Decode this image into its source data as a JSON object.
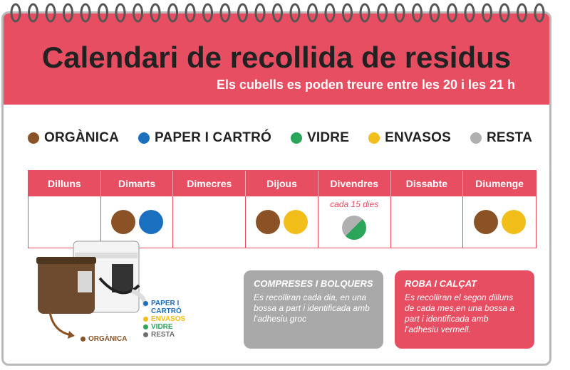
{
  "header": {
    "title": "Calendari de recollida de residus",
    "subtitle": "Els cubells es poden treure entre les 20 i les 21 h"
  },
  "legend": [
    {
      "label": "ORGÀNICA",
      "color": "#8b5226"
    },
    {
      "label": "PAPER I CARTRÓ",
      "color": "#1b6fbf"
    },
    {
      "label": "VIDRE",
      "color": "#2aa55a"
    },
    {
      "label": "ENVASOS",
      "color": "#f2be1a"
    },
    {
      "label": "RESTA",
      "color": "#b0b0b0"
    }
  ],
  "calendar": {
    "days": [
      "Dilluns",
      "Dimarts",
      "Dimecres",
      "Dijous",
      "Divendres",
      "Dissabte",
      "Diumenge"
    ],
    "cells": [
      {
        "bins": []
      },
      {
        "bins": [
          "#8b5226",
          "#1b6fbf"
        ]
      },
      {
        "bins": []
      },
      {
        "bins": [
          "#8b5226",
          "#f2be1a"
        ]
      },
      {
        "note": "cada 15 dies",
        "bins": [
          "#b0b0b0",
          "#2aa55a"
        ],
        "split": true
      },
      {
        "bins": []
      },
      {
        "bins": [
          "#8b5226",
          "#f2be1a"
        ]
      }
    ]
  },
  "illustration": {
    "labels": [
      {
        "text": "PAPER I CARTRÓ",
        "color": "#1b6fbf"
      },
      {
        "text": "ENVASOS",
        "color": "#f2be1a"
      },
      {
        "text": "VIDRE",
        "color": "#2aa55a"
      },
      {
        "text": "RESTA",
        "color": "#6d6d6d"
      }
    ],
    "organic": {
      "text": "ORGÀNICA",
      "color": "#8b5226"
    }
  },
  "notes": [
    {
      "title": "COMPRESES I BOLQUERS",
      "text": "Es recolliran cada dia, en una bossa a part i identificada amb l’adhesiu groc",
      "color": "#a9a9a9"
    },
    {
      "title": "ROBA I CALÇAT",
      "text": "Es recolliran el segon dilluns de cada mes,en una bossa a part i identificada amb l’adhesiu vermell.",
      "color": "#e84e62"
    }
  ]
}
